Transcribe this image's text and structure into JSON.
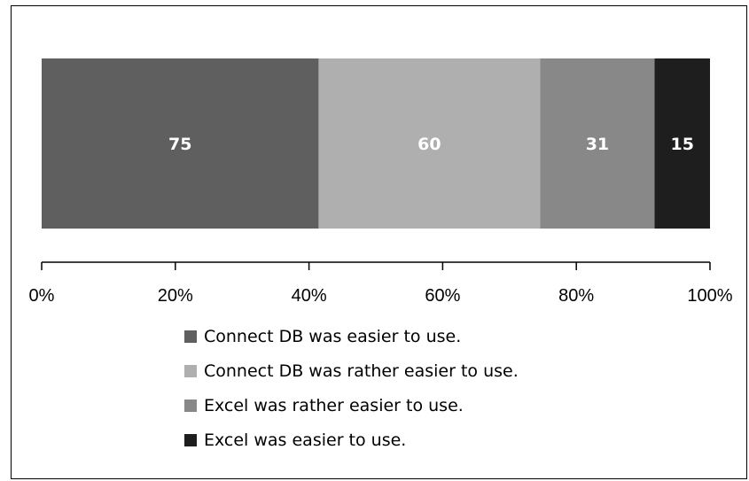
{
  "chart_data": {
    "type": "bar",
    "orientation": "horizontal",
    "stacked": true,
    "normalized_percent": true,
    "series": [
      {
        "name": "Connect DB was easier to use.",
        "value": 75,
        "color": "#5f5f5f"
      },
      {
        "name": "Connect DB was rather easier to use.",
        "value": 60,
        "color": "#afafaf"
      },
      {
        "name": "Excel was rather easier to use.",
        "value": 31,
        "color": "#888888"
      },
      {
        "name": "Excel was easier to use.",
        "value": 15,
        "color": "#1e1e1e"
      }
    ],
    "x_ticks": [
      "0%",
      "20%",
      "40%",
      "60%",
      "80%",
      "100%"
    ],
    "xlim": [
      0,
      100
    ],
    "grid": false,
    "legend_position": "bottom"
  }
}
